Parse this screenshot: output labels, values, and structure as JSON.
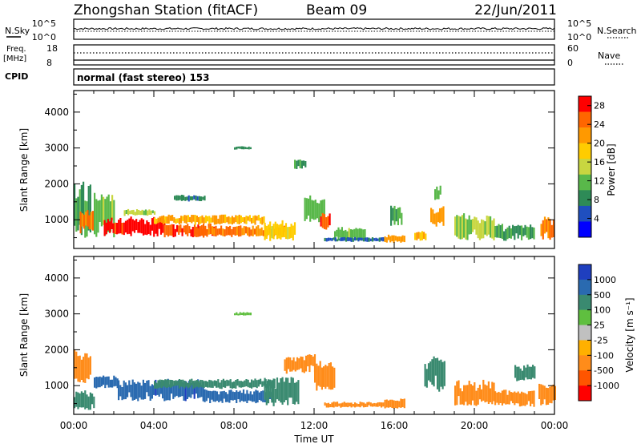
{
  "header": {
    "station": "Zhongshan Station (fitACF)",
    "beam": "Beam 09",
    "date": "22/Jun/2011"
  },
  "nsky_panel": {
    "left_label": "N.Sky",
    "right_label": "N.Search",
    "left_ticks": [
      "10^5",
      "10^0"
    ],
    "right_ticks": [
      "10^5",
      "10^0"
    ]
  },
  "freq_panel": {
    "left_label_1": "Freq.",
    "left_label_2": "[MHz]",
    "right_label": "Nave",
    "left_ticks": [
      "18",
      "8"
    ],
    "right_ticks": [
      "60",
      "0"
    ]
  },
  "cpid": {
    "label": "CPID",
    "text": "normal (fast stereo) 153"
  },
  "colors": {
    "power_scale": [
      "#0000ff",
      "#1f4fbf",
      "#2e8b57",
      "#59b84a",
      "#c8d640",
      "#ffcc00",
      "#ff9900",
      "#ff6600",
      "#ff0000"
    ],
    "velocity_scale": [
      "#1f3fbf",
      "#2a6ab0",
      "#3a8a70",
      "#5fbf3f",
      "#c0c0c0",
      "#ffb000",
      "#ff8c1a",
      "#ff5500",
      "#ff0000"
    ]
  },
  "chart_data": [
    {
      "type": "heatmap",
      "name": "power",
      "ylabel": "Slant Range [km]",
      "xlabel": "",
      "ylim": [
        200,
        4600
      ],
      "xlim": [
        0,
        24
      ],
      "y_ticks": [
        1000,
        2000,
        3000,
        4000
      ],
      "colorbar_label": "Power [dB]",
      "colorbar_ticks": [
        "4",
        "8",
        "12",
        "16",
        "20",
        "24",
        "28"
      ],
      "colorbar_range": [
        0,
        30
      ],
      "cells": [
        {
          "t0": 0.0,
          "t1": 0.8,
          "r0": 300,
          "r1": 2100,
          "v": 10
        },
        {
          "t0": 0.3,
          "t1": 1.0,
          "r0": 600,
          "r1": 1300,
          "v": 24
        },
        {
          "t0": 1.0,
          "t1": 2.0,
          "r0": 450,
          "r1": 1800,
          "v": 12
        },
        {
          "t0": 1.5,
          "t1": 4.5,
          "r0": 500,
          "r1": 1100,
          "v": 28
        },
        {
          "t0": 2.5,
          "t1": 4.0,
          "r0": 1100,
          "r1": 1300,
          "v": 14
        },
        {
          "t0": 4.5,
          "t1": 7.0,
          "r0": 500,
          "r1": 900,
          "v": 26
        },
        {
          "t0": 4.0,
          "t1": 9.5,
          "r0": 850,
          "r1": 1150,
          "v": 20
        },
        {
          "t0": 6.0,
          "t1": 10.5,
          "r0": 500,
          "r1": 850,
          "v": 24
        },
        {
          "t0": 9.5,
          "t1": 11.0,
          "r0": 400,
          "r1": 1000,
          "v": 18
        },
        {
          "t0": 8.0,
          "t1": 8.8,
          "r0": 2950,
          "r1": 3050,
          "v": 8
        },
        {
          "t0": 5.0,
          "t1": 6.5,
          "r0": 1500,
          "r1": 1700,
          "v": 8
        },
        {
          "t0": 11.5,
          "t1": 12.5,
          "r0": 900,
          "r1": 1700,
          "v": 12
        },
        {
          "t0": 12.3,
          "t1": 12.8,
          "r0": 700,
          "r1": 1200,
          "v": 26
        },
        {
          "t0": 13.0,
          "t1": 14.5,
          "r0": 400,
          "r1": 800,
          "v": 12
        },
        {
          "t0": 12.5,
          "t1": 15.5,
          "r0": 380,
          "r1": 520,
          "v": 6
        },
        {
          "t0": 15.5,
          "t1": 16.5,
          "r0": 350,
          "r1": 600,
          "v": 22
        },
        {
          "t0": 15.8,
          "t1": 16.4,
          "r0": 800,
          "r1": 1400,
          "v": 10
        },
        {
          "t0": 17.8,
          "t1": 18.5,
          "r0": 800,
          "r1": 1400,
          "v": 22
        },
        {
          "t0": 18.0,
          "t1": 18.3,
          "r0": 1500,
          "r1": 2000,
          "v": 12
        },
        {
          "t0": 19.0,
          "t1": 21.0,
          "r0": 400,
          "r1": 1200,
          "v": 14
        },
        {
          "t0": 21.0,
          "t1": 23.0,
          "r0": 400,
          "r1": 900,
          "v": 10
        },
        {
          "t0": 23.3,
          "t1": 24.0,
          "r0": 400,
          "r1": 1100,
          "v": 24
        },
        {
          "t0": 17.0,
          "t1": 17.6,
          "r0": 400,
          "r1": 700,
          "v": 20
        },
        {
          "t0": 11.0,
          "t1": 11.6,
          "r0": 2400,
          "r1": 2700,
          "v": 10
        }
      ]
    },
    {
      "type": "heatmap",
      "name": "velocity",
      "ylabel": "Slant Range [km]",
      "xlabel": "Time UT",
      "ylim": [
        200,
        4600
      ],
      "xlim": [
        0,
        24
      ],
      "y_ticks": [
        1000,
        2000,
        3000,
        4000
      ],
      "x_tick_labels": [
        "00:00",
        "04:00",
        "08:00",
        "12:00",
        "16:00",
        "20:00",
        "00:00"
      ],
      "x_ticks": [
        0,
        4,
        8,
        12,
        16,
        20,
        24
      ],
      "colorbar_label": "Velocity [m s⁻¹]",
      "colorbar_ticks": [
        "1000",
        "500",
        "100",
        "25",
        "-25",
        "-100",
        "-500",
        "-1000"
      ],
      "cells": [
        {
          "t0": 0.0,
          "t1": 0.8,
          "r0": 900,
          "r1": 2100,
          "v": -300
        },
        {
          "t0": 0.0,
          "t1": 1.0,
          "r0": 300,
          "r1": 900,
          "v": 400
        },
        {
          "t0": 1.0,
          "t1": 2.2,
          "r0": 900,
          "r1": 1300,
          "v": 800
        },
        {
          "t0": 2.2,
          "t1": 6.5,
          "r0": 550,
          "r1": 1200,
          "v": 900
        },
        {
          "t0": 6.5,
          "t1": 10.0,
          "r0": 500,
          "r1": 900,
          "v": 700
        },
        {
          "t0": 4.0,
          "t1": 10.0,
          "r0": 900,
          "r1": 1200,
          "v": 300
        },
        {
          "t0": 9.5,
          "t1": 11.2,
          "r0": 400,
          "r1": 1300,
          "v": 150
        },
        {
          "t0": 10.5,
          "t1": 12.0,
          "r0": 1300,
          "r1": 1900,
          "v": -200
        },
        {
          "t0": 8.0,
          "t1": 8.8,
          "r0": 2950,
          "r1": 3050,
          "v": 30
        },
        {
          "t0": 12.0,
          "t1": 13.0,
          "r0": 800,
          "r1": 1700,
          "v": -150
        },
        {
          "t0": 12.5,
          "t1": 15.5,
          "r0": 380,
          "r1": 560,
          "v": -300
        },
        {
          "t0": 15.5,
          "t1": 16.5,
          "r0": 350,
          "r1": 650,
          "v": -350
        },
        {
          "t0": 17.5,
          "t1": 18.5,
          "r0": 800,
          "r1": 1900,
          "v": 200
        },
        {
          "t0": 19.0,
          "t1": 21.0,
          "r0": 400,
          "r1": 1200,
          "v": -150
        },
        {
          "t0": 21.0,
          "t1": 23.0,
          "r0": 400,
          "r1": 900,
          "v": -250
        },
        {
          "t0": 23.2,
          "t1": 24.0,
          "r0": 400,
          "r1": 1100,
          "v": -400
        },
        {
          "t0": 22.0,
          "t1": 23.0,
          "r0": 1100,
          "r1": 1600,
          "v": 400
        }
      ]
    }
  ]
}
